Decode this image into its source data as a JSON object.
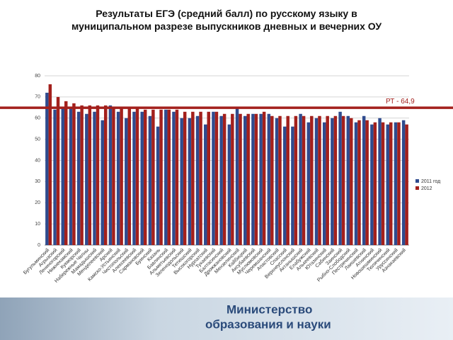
{
  "chart_data": {
    "type": "bar",
    "title": "Результаты ЕГЭ (средний балл) по русскому языку в муниципальном разрезе выпускников дневных и вечерних ОУ",
    "categories": [
      "Бугульминский",
      "Агрызский",
      "Лениногорский",
      "Нижнекамский",
      "Кукморский",
      "Набережные Челны",
      "Мамадышский",
      "Менделеевский",
      "Арский",
      "Камско-Устьинский",
      "Чистопольский",
      "Алексеевский",
      "Сармановский",
      "Буинский",
      "Казань",
      "Бавлинский",
      "Альметьевский",
      "Зеленодольский",
      "Тетюшский",
      "Высокогорский",
      "Нурлатский",
      "Тукаевский",
      "Балтасинский",
      "Дрожжановский",
      "Мензелинский",
      "Кайбицкий",
      "Аксубаевский",
      "Муслюмовский",
      "Черемшанский",
      "Апастовский",
      "Спасский",
      "Верхнеуслонский",
      "Актанышский",
      "Елабужский",
      "Алькеевский",
      "Ютазинский",
      "Сабинский",
      "Заинский",
      "Рыбно-Слободский",
      "Пестречинский",
      "Лаишевский",
      "Атнинский",
      "Новошешминский",
      "Тюлячинский",
      "Уруссинский",
      "Азнакаевский"
    ],
    "series": [
      {
        "name": "2011 год",
        "color": "#2f4b8e",
        "values": [
          72,
          64,
          65,
          65,
          63,
          62,
          63,
          59,
          66,
          63,
          60,
          63,
          63,
          61,
          56,
          64,
          63,
          60,
          60,
          61,
          57,
          63,
          61,
          57,
          65,
          61,
          62,
          62,
          62,
          60,
          56,
          56,
          62,
          58,
          60,
          58,
          60,
          63,
          61,
          58,
          61,
          57,
          60,
          57,
          58,
          59
        ]
      },
      {
        "name": "2012",
        "color": "#a3201c",
        "values": [
          76,
          70,
          68,
          67,
          66,
          66,
          66,
          66,
          65,
          65,
          65,
          65,
          64,
          64,
          64,
          64,
          64,
          63,
          63,
          63,
          63,
          63,
          62,
          62,
          62,
          62,
          62,
          63,
          61,
          61,
          61,
          61,
          61,
          61,
          61,
          61,
          61,
          61,
          60,
          59,
          59,
          58,
          58,
          58,
          58,
          57
        ]
      }
    ],
    "ylim": [
      0,
      80
    ],
    "yticks": [
      0,
      10,
      20,
      30,
      40,
      50,
      60,
      70,
      80
    ],
    "grid": true,
    "reference_value": 64.9,
    "reference_label": "РТ - 64,9",
    "reference_color": "#a3201c",
    "legend": "right"
  },
  "footer": {
    "line1": "Министерство",
    "line2": "образования и науки"
  }
}
